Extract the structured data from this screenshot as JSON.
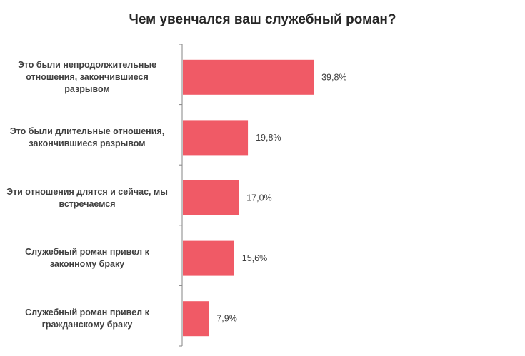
{
  "chart_data": {
    "type": "bar",
    "orientation": "horizontal",
    "title": "Чем увенчался ваш служебный роман?",
    "categories": [
      "Это были непродолжительные отношения, закончившиеся разрывом",
      "Это были длительные отношения, закончившиеся  разрывом",
      "Эти отношения длятся  и сейчас, мы встречаемся",
      "Служебный роман  привел к законному  браку",
      "Служебный роман  привел к гражданскому браку"
    ],
    "values": [
      39.8,
      19.8,
      17.0,
      15.6,
      7.9
    ],
    "data_labels": [
      "39,8%",
      "19,8%",
      "17,0%",
      "15,6%",
      "7,9%"
    ],
    "unit": "%",
    "grid": false,
    "legend": "none",
    "bar_color": "#f05a66"
  }
}
